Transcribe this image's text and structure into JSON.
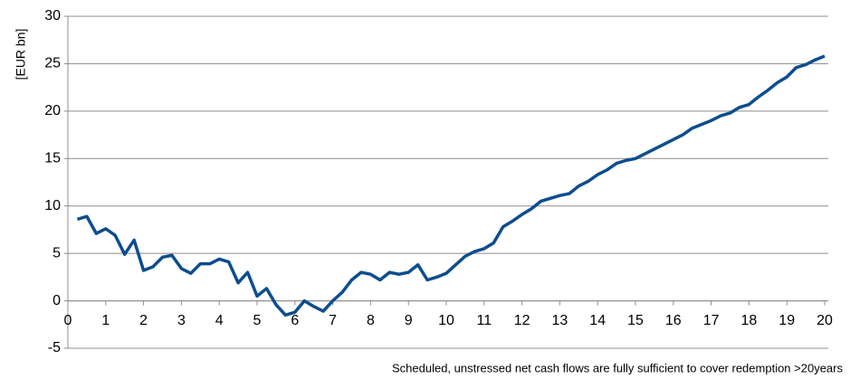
{
  "chart_data": {
    "type": "line",
    "ylabel": "[EUR bn]",
    "caption": "Scheduled, unstressed net cash flows are fully sufficient to cover redemption >20years",
    "x": [
      0.25,
      0.5,
      0.75,
      1.0,
      1.25,
      1.5,
      1.75,
      2.0,
      2.25,
      2.5,
      2.75,
      3.0,
      3.25,
      3.5,
      3.75,
      4.0,
      4.25,
      4.5,
      4.75,
      5.0,
      5.25,
      5.5,
      5.75,
      6.0,
      6.25,
      6.5,
      6.75,
      7.0,
      7.25,
      7.5,
      7.75,
      8.0,
      8.25,
      8.5,
      8.75,
      9.0,
      9.25,
      9.5,
      9.75,
      10.0,
      10.25,
      10.5,
      10.75,
      11.0,
      11.25,
      11.5,
      11.75,
      12.0,
      12.25,
      12.5,
      12.75,
      13.0,
      13.25,
      13.5,
      13.75,
      14.0,
      14.25,
      14.5,
      14.75,
      15.0,
      15.25,
      15.5,
      15.75,
      16.0,
      16.25,
      16.5,
      16.75,
      17.0,
      17.25,
      17.5,
      17.75,
      18.0,
      18.25,
      18.5,
      18.75,
      19.0,
      19.25,
      19.5,
      19.75,
      20.0
    ],
    "series": [
      {
        "color": "#0e4d8e",
        "values": [
          8.6,
          8.9,
          7.1,
          7.6,
          6.9,
          4.9,
          6.4,
          3.2,
          3.6,
          4.6,
          4.8,
          3.4,
          2.9,
          3.9,
          3.9,
          4.4,
          4.1,
          1.9,
          3.0,
          0.5,
          1.3,
          -0.4,
          -1.5,
          -1.2,
          0.0,
          -0.6,
          -1.1,
          0.0,
          0.9,
          2.2,
          3.0,
          2.8,
          2.2,
          3.0,
          2.8,
          3.0,
          3.8,
          2.2,
          2.5,
          2.9,
          3.8,
          4.7,
          5.2,
          5.5,
          6.1,
          7.8,
          8.4,
          9.1,
          9.7,
          10.5,
          10.8,
          11.1,
          11.3,
          12.1,
          12.6,
          13.3,
          13.8,
          14.5,
          14.8,
          15.0,
          15.5,
          16.0,
          16.5,
          17.0,
          17.5,
          18.2,
          18.6,
          19.0,
          19.5,
          19.8,
          20.4,
          20.7,
          21.5,
          22.2,
          23.0,
          23.6,
          24.6,
          24.9,
          25.4,
          25.8
        ]
      }
    ],
    "xlim": [
      0,
      20
    ],
    "xticks": [
      0,
      1,
      2,
      3,
      4,
      5,
      6,
      7,
      8,
      9,
      10,
      11,
      12,
      13,
      14,
      15,
      16,
      17,
      18,
      19,
      20
    ],
    "ylim": [
      -5,
      30
    ],
    "yticks": [
      -5,
      0,
      5,
      10,
      15,
      20,
      25,
      30
    ],
    "grid": true
  }
}
